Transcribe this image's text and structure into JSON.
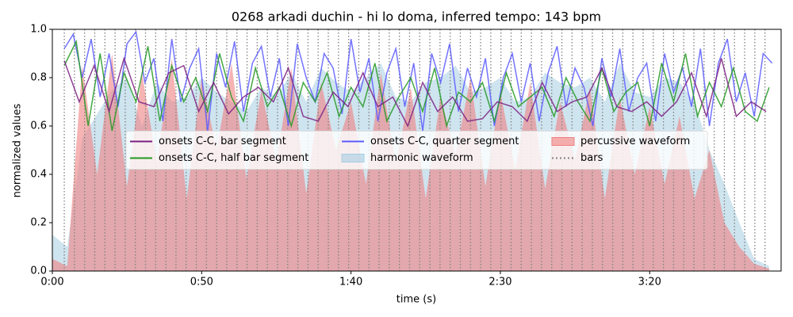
{
  "chart_data": {
    "type": "line",
    "title": "0268 arkadi duchin - hi lo doma, inferred tempo: 143 bpm",
    "xlabel": "time (s)",
    "ylabel": "normalized values",
    "xlim": [
      0,
      244
    ],
    "ylim": [
      0,
      1
    ],
    "xticks": [
      {
        "value": 0,
        "label": "0:00"
      },
      {
        "value": 50,
        "label": "0:50"
      },
      {
        "value": 100,
        "label": "1:40"
      },
      {
        "value": 150,
        "label": "2:30"
      },
      {
        "value": 200,
        "label": "3:20"
      }
    ],
    "yticks": [
      {
        "value": 0,
        "label": "0.0"
      },
      0.2,
      0.4,
      0.6,
      0.8,
      {
        "value": 1,
        "label": "1.0"
      }
    ],
    "legend_loc": "center",
    "areas": [
      {
        "name": "harmonic waveform",
        "color": "#a6cde2",
        "x": [
          0,
          5,
          10,
          15,
          20,
          25,
          30,
          35,
          40,
          45,
          50,
          55,
          60,
          65,
          70,
          75,
          80,
          85,
          90,
          95,
          100,
          105,
          110,
          115,
          120,
          125,
          130,
          135,
          140,
          145,
          150,
          155,
          160,
          165,
          170,
          175,
          180,
          185,
          190,
          195,
          200,
          205,
          210,
          215,
          220,
          225,
          230,
          235,
          240
        ],
        "values": [
          0.15,
          0.1,
          0.55,
          0.65,
          0.75,
          0.8,
          0.6,
          0.78,
          0.7,
          0.72,
          0.8,
          0.74,
          0.7,
          0.66,
          0.76,
          0.72,
          0.82,
          0.7,
          0.84,
          0.78,
          0.74,
          0.8,
          0.86,
          0.72,
          0.7,
          0.78,
          0.8,
          0.85,
          0.74,
          0.76,
          0.8,
          0.7,
          0.72,
          0.82,
          0.78,
          0.76,
          0.8,
          0.7,
          0.86,
          0.74,
          0.72,
          0.8,
          0.78,
          0.7,
          0.5,
          0.36,
          0.2,
          0.05,
          0.02
        ]
      },
      {
        "name": "percussive waveform",
        "color": "#f08080",
        "x": [
          0,
          5,
          10,
          15,
          20,
          25,
          30,
          35,
          40,
          45,
          50,
          55,
          60,
          65,
          70,
          75,
          80,
          85,
          90,
          95,
          100,
          105,
          110,
          115,
          120,
          125,
          130,
          135,
          140,
          145,
          150,
          155,
          160,
          165,
          170,
          175,
          180,
          185,
          190,
          195,
          200,
          205,
          210,
          215,
          220,
          225,
          230,
          235,
          240
        ],
        "values": [
          0.05,
          0.02,
          0.85,
          0.4,
          0.9,
          0.35,
          0.82,
          0.45,
          0.88,
          0.3,
          0.8,
          0.5,
          0.86,
          0.38,
          0.75,
          0.45,
          0.84,
          0.32,
          0.78,
          0.5,
          0.7,
          0.36,
          0.82,
          0.44,
          0.76,
          0.3,
          0.72,
          0.48,
          0.8,
          0.35,
          0.74,
          0.42,
          0.78,
          0.34,
          0.7,
          0.46,
          0.76,
          0.3,
          0.72,
          0.4,
          0.68,
          0.36,
          0.64,
          0.3,
          0.5,
          0.2,
          0.1,
          0.03,
          0.01
        ]
      }
    ],
    "bars": {
      "name": "bars",
      "color": "#808080",
      "x": [
        4.0,
        7.4,
        10.8,
        14.2,
        17.6,
        21.0,
        24.4,
        27.8,
        31.2,
        34.6,
        38.0,
        41.4,
        44.8,
        48.2,
        51.6,
        55.0,
        58.4,
        61.8,
        65.2,
        68.6,
        72.0,
        75.4,
        78.8,
        82.2,
        85.6,
        89.0,
        92.4,
        95.8,
        99.2,
        102.6,
        106.0,
        109.4,
        112.8,
        116.2,
        119.6,
        123.0,
        126.4,
        129.8,
        133.2,
        136.6,
        140.0,
        143.4,
        146.8,
        150.2,
        153.6,
        157.0,
        160.4,
        163.8,
        167.2,
        170.6,
        174.0,
        177.4,
        180.8,
        184.2,
        187.6,
        191.0,
        194.4,
        197.8,
        201.2,
        204.6,
        208.0,
        211.4,
        214.8,
        218.2,
        221.6,
        225.0,
        228.4,
        231.8,
        235.2,
        238.6
      ]
    },
    "series": [
      {
        "name": "onsets C-C, bar segment",
        "color": "#7b2083",
        "x": [
          4,
          9,
          14,
          19,
          24,
          29,
          34,
          39,
          44,
          49,
          54,
          59,
          64,
          69,
          74,
          79,
          84,
          89,
          94,
          99,
          104,
          109,
          114,
          119,
          124,
          129,
          134,
          139,
          144,
          149,
          154,
          159,
          164,
          169,
          174,
          179,
          184,
          189,
          194,
          199,
          204,
          209,
          214,
          219,
          224,
          229,
          234,
          239
        ],
        "values": [
          0.87,
          0.7,
          0.85,
          0.66,
          0.88,
          0.7,
          0.68,
          0.82,
          0.85,
          0.66,
          0.78,
          0.65,
          0.72,
          0.76,
          0.7,
          0.84,
          0.64,
          0.62,
          0.74,
          0.68,
          0.82,
          0.68,
          0.72,
          0.6,
          0.78,
          0.66,
          0.72,
          0.62,
          0.63,
          0.7,
          0.68,
          0.62,
          0.78,
          0.66,
          0.7,
          0.72,
          0.84,
          0.68,
          0.66,
          0.7,
          0.64,
          0.7,
          0.82,
          0.64,
          0.88,
          0.64,
          0.7,
          0.66
        ]
      },
      {
        "name": "onsets C-C, half bar segment",
        "color": "#229922",
        "x": [
          4,
          8,
          12,
          16,
          20,
          24,
          28,
          32,
          36,
          40,
          44,
          48,
          52,
          56,
          60,
          64,
          68,
          72,
          76,
          80,
          84,
          88,
          92,
          96,
          100,
          104,
          108,
          112,
          116,
          120,
          124,
          128,
          132,
          136,
          140,
          144,
          148,
          152,
          156,
          160,
          164,
          168,
          172,
          176,
          180,
          184,
          188,
          192,
          196,
          200,
          204,
          208,
          212,
          216,
          220,
          224,
          228,
          232,
          236,
          240
        ],
        "values": [
          0.85,
          0.95,
          0.6,
          0.9,
          0.58,
          0.82,
          0.7,
          0.93,
          0.62,
          0.85,
          0.7,
          0.8,
          0.66,
          0.9,
          0.72,
          0.62,
          0.84,
          0.68,
          0.76,
          0.6,
          0.78,
          0.7,
          0.82,
          0.64,
          0.76,
          0.68,
          0.86,
          0.62,
          0.72,
          0.8,
          0.66,
          0.84,
          0.6,
          0.74,
          0.7,
          0.78,
          0.62,
          0.82,
          0.68,
          0.72,
          0.76,
          0.64,
          0.8,
          0.7,
          0.62,
          0.84,
          0.66,
          0.74,
          0.78,
          0.6,
          0.86,
          0.7,
          0.9,
          0.64,
          0.78,
          0.68,
          0.84,
          0.66,
          0.62,
          0.76
        ]
      },
      {
        "name": "onsets C-C, quarter segment",
        "color": "#5a5aff",
        "x": [
          4,
          7,
          10,
          13,
          16,
          19,
          22,
          25,
          28,
          31,
          34,
          37,
          40,
          43,
          46,
          49,
          52,
          55,
          58,
          61,
          64,
          67,
          70,
          73,
          76,
          79,
          82,
          85,
          88,
          91,
          94,
          97,
          100,
          103,
          106,
          109,
          112,
          115,
          118,
          121,
          124,
          127,
          130,
          133,
          136,
          139,
          142,
          145,
          148,
          151,
          154,
          157,
          160,
          163,
          166,
          169,
          172,
          175,
          178,
          181,
          184,
          187,
          190,
          193,
          196,
          199,
          202,
          205,
          208,
          211,
          214,
          217,
          220,
          223,
          226,
          229,
          232,
          235,
          238,
          241
        ],
        "values": [
          0.92,
          0.98,
          0.8,
          0.96,
          0.72,
          0.9,
          0.68,
          0.94,
          0.99,
          0.78,
          0.88,
          0.62,
          0.96,
          0.7,
          0.84,
          0.92,
          0.58,
          0.9,
          0.76,
          0.95,
          0.66,
          0.86,
          0.93,
          0.72,
          0.88,
          0.6,
          0.94,
          0.8,
          0.7,
          0.9,
          0.84,
          0.65,
          0.96,
          0.74,
          0.88,
          0.62,
          0.82,
          0.92,
          0.68,
          0.86,
          0.58,
          0.9,
          0.78,
          0.94,
          0.66,
          0.84,
          0.72,
          0.88,
          0.6,
          0.8,
          0.9,
          0.7,
          0.86,
          0.62,
          0.82,
          0.93,
          0.68,
          0.84,
          0.76,
          0.6,
          0.88,
          0.72,
          0.92,
          0.66,
          0.8,
          0.86,
          0.62,
          0.9,
          0.74,
          0.84,
          0.68,
          0.92,
          0.6,
          0.86,
          0.96,
          0.7,
          0.82,
          0.64,
          0.9,
          0.86
        ]
      }
    ]
  }
}
